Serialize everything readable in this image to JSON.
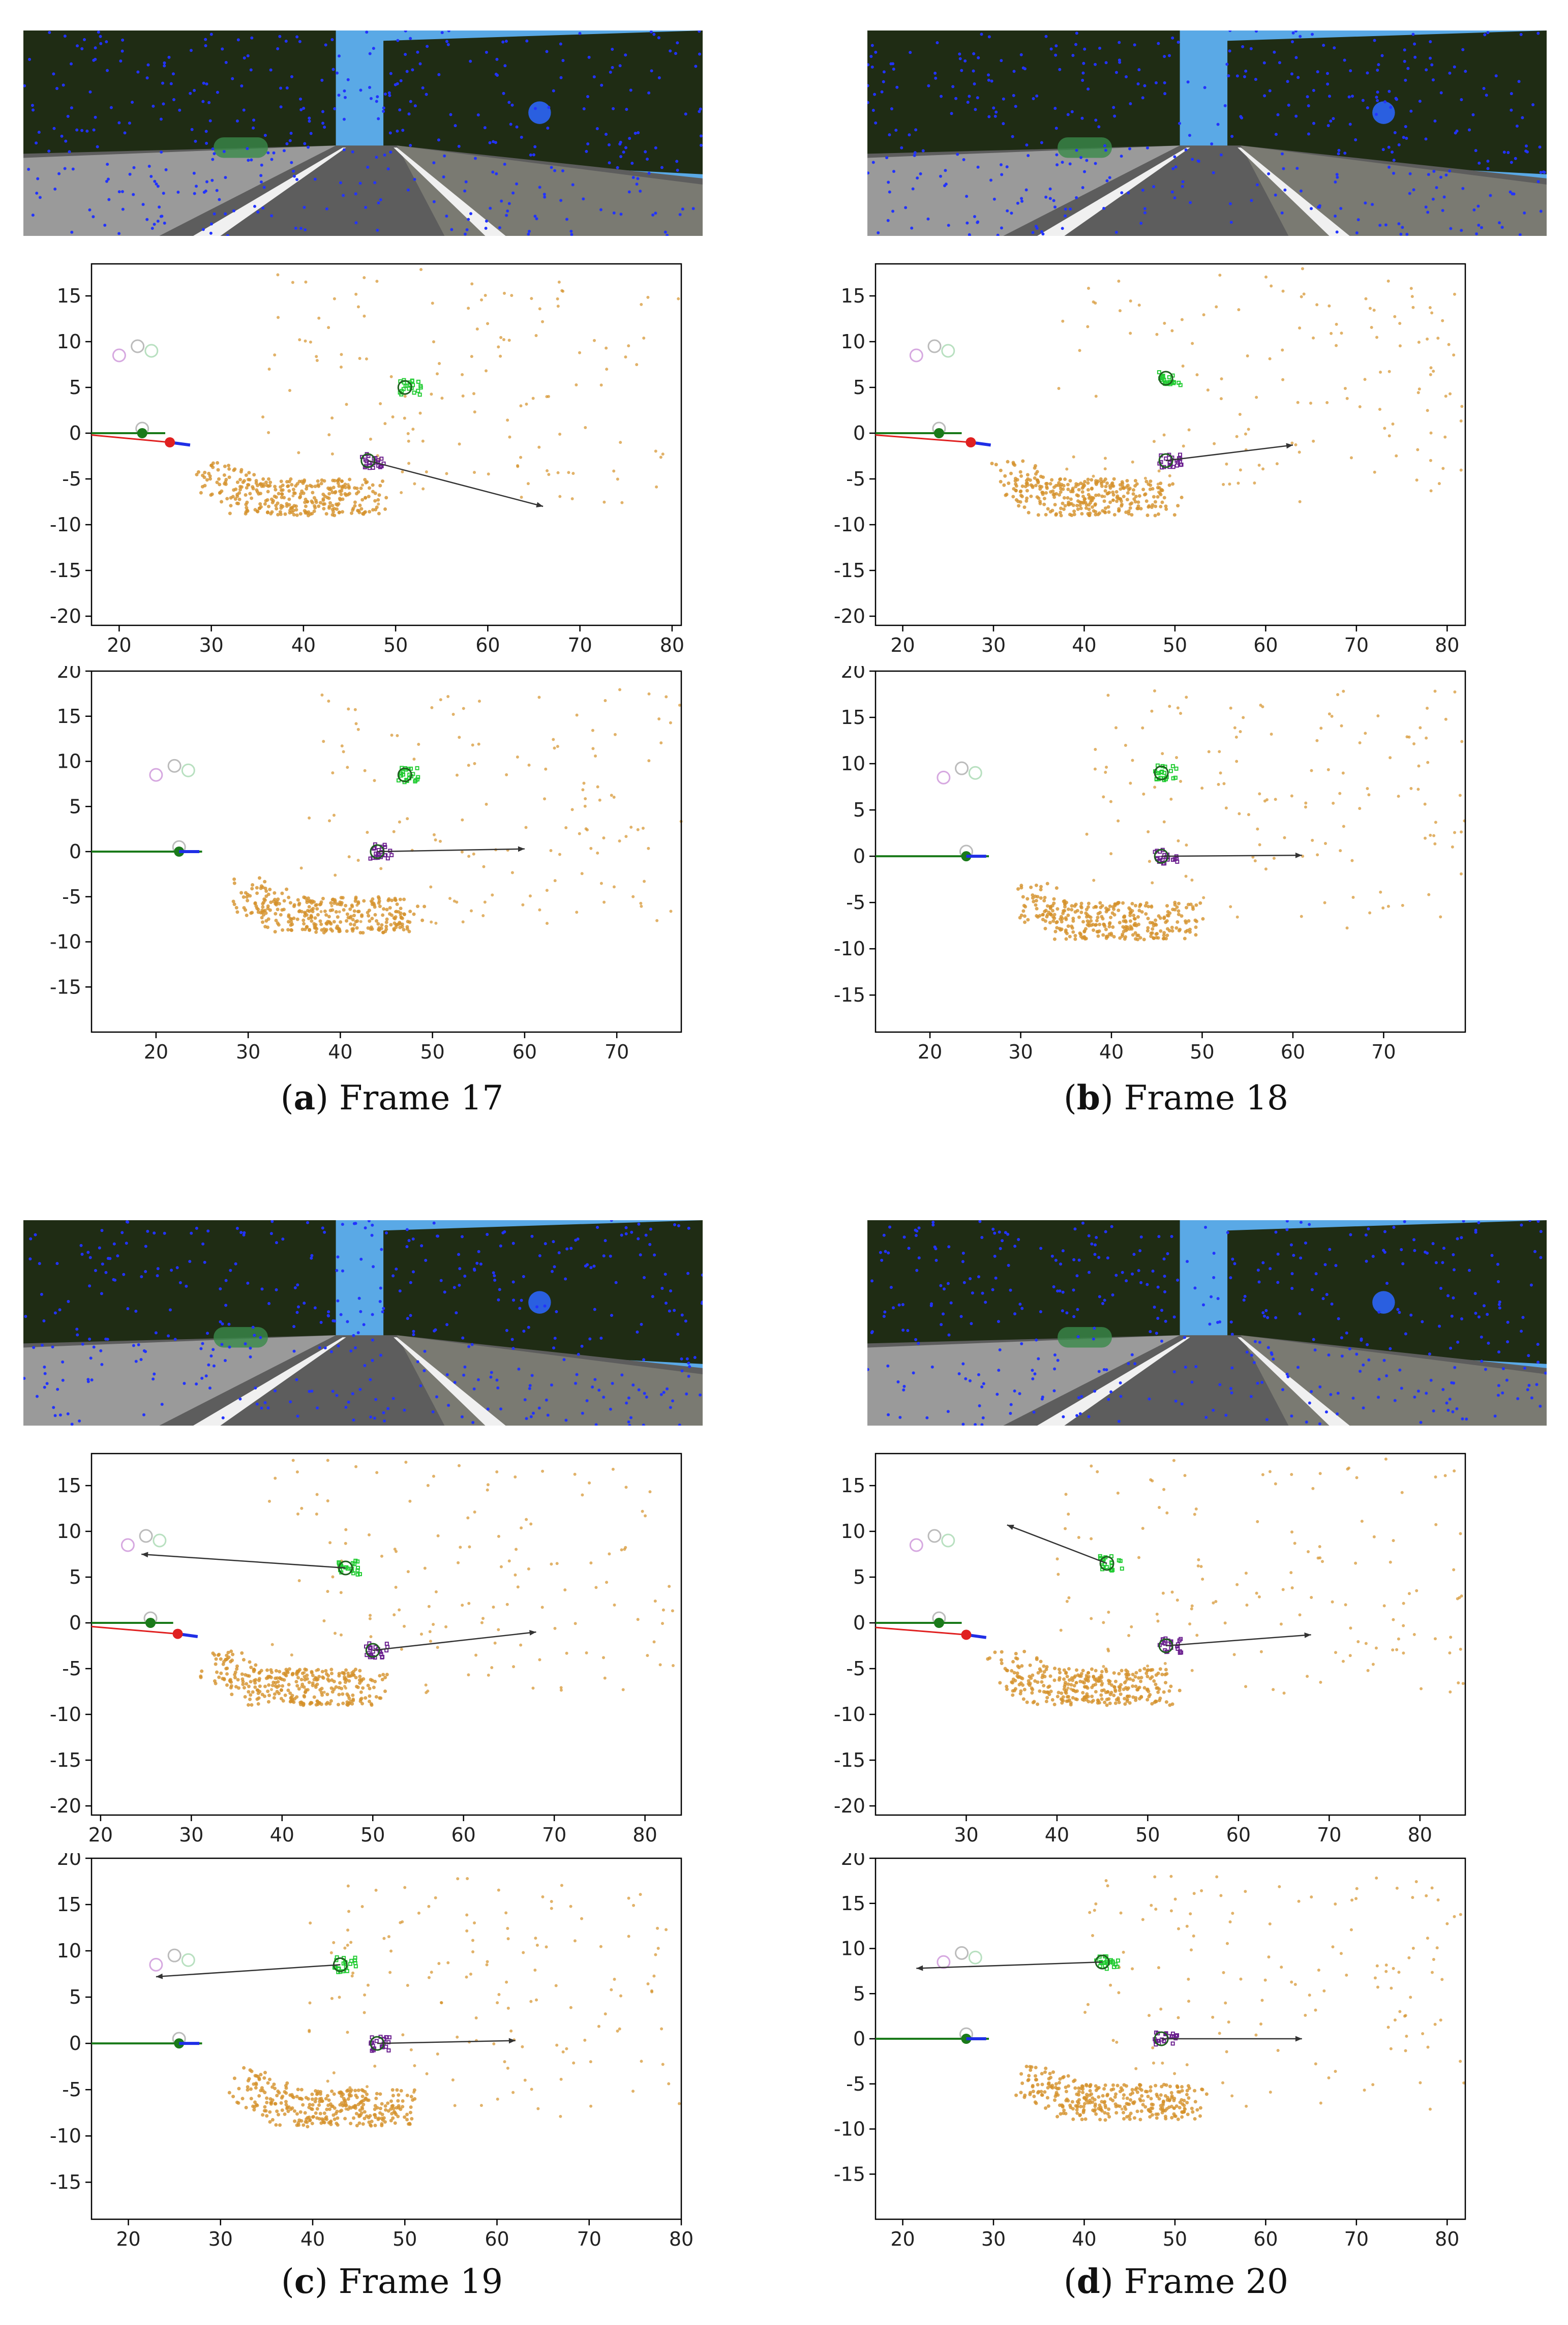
{
  "figure": {
    "panels": [
      {
        "letter": "a",
        "caption_text": "Frame 17",
        "plots": [
          {
            "xlim": [
              17,
              81
            ],
            "ylim": [
              -21,
              18.5
            ],
            "xticks": [
              20,
              30,
              40,
              50,
              60,
              70,
              80
            ],
            "yticks": [
              15,
              10,
              5,
              0,
              -5,
              -10,
              -15,
              -20
            ],
            "ego": {
              "x": 22.5,
              "y": 0
            },
            "predicted_ego": {
              "x": 25.5,
              "y": -1
            },
            "objects": [
              {
                "name": "car",
                "x": 51,
                "y": 5,
                "arrow_to": null
              },
              {
                "name": "pedestrian",
                "x": 47,
                "y": -3,
                "arrow_to": [
                  66,
                  -8
                ]
              }
            ]
          },
          {
            "xlim": [
              13,
              77
            ],
            "ylim": [
              -20,
              20
            ],
            "xticks": [
              20,
              30,
              40,
              50,
              60,
              70
            ],
            "yticks": [
              20,
              15,
              10,
              5,
              0,
              -5,
              -10,
              -15
            ],
            "ego": {
              "x": 22.5,
              "y": 0
            },
            "predicted_ego": null,
            "objects": [
              {
                "name": "car",
                "x": 47,
                "y": 8.5,
                "arrow_to": null
              },
              {
                "name": "pedestrian",
                "x": 44,
                "y": 0,
                "arrow_to": [
                  60,
                  0.3
                ]
              }
            ]
          }
        ]
      },
      {
        "letter": "b",
        "caption_text": "Frame 18",
        "plots": [
          {
            "xlim": [
              17,
              82
            ],
            "ylim": [
              -21,
              18.5
            ],
            "xticks": [
              20,
              30,
              40,
              50,
              60,
              70,
              80
            ],
            "yticks": [
              15,
              10,
              5,
              0,
              -5,
              -10,
              -15,
              -20
            ],
            "ego": {
              "x": 24,
              "y": 0
            },
            "predicted_ego": {
              "x": 27.5,
              "y": -1
            },
            "objects": [
              {
                "name": "car",
                "x": 49,
                "y": 6,
                "arrow_to": null
              },
              {
                "name": "pedestrian",
                "x": 49,
                "y": -3,
                "arrow_to": [
                  63,
                  -1.3
                ]
              }
            ]
          },
          {
            "xlim": [
              14,
              79
            ],
            "ylim": [
              -19,
              20
            ],
            "xticks": [
              20,
              30,
              40,
              50,
              60,
              70
            ],
            "yticks": [
              20,
              15,
              10,
              5,
              0,
              -5,
              -10,
              -15
            ],
            "ego": {
              "x": 24,
              "y": 0
            },
            "predicted_ego": null,
            "objects": [
              {
                "name": "car",
                "x": 45.5,
                "y": 9,
                "arrow_to": null
              },
              {
                "name": "pedestrian",
                "x": 45.5,
                "y": 0,
                "arrow_to": [
                  61,
                  0.1
                ]
              }
            ]
          }
        ]
      },
      {
        "letter": "c",
        "caption_text": "Frame 19",
        "plots": [
          {
            "xlim": [
              19,
              84
            ],
            "ylim": [
              -21,
              18.5
            ],
            "xticks": [
              20,
              30,
              40,
              50,
              60,
              70,
              80
            ],
            "yticks": [
              15,
              10,
              5,
              0,
              -5,
              -10,
              -15,
              -20
            ],
            "ego": {
              "x": 25.5,
              "y": 0
            },
            "predicted_ego": {
              "x": 28.5,
              "y": -1.2
            },
            "objects": [
              {
                "name": "car",
                "x": 47,
                "y": 6,
                "arrow_to": [
                  24.5,
                  7.5
                ]
              },
              {
                "name": "pedestrian",
                "x": 50,
                "y": -3,
                "arrow_to": [
                  68,
                  -1
                ]
              }
            ]
          },
          {
            "xlim": [
              16,
              80
            ],
            "ylim": [
              -19,
              20
            ],
            "xticks": [
              20,
              30,
              40,
              50,
              60,
              70,
              80
            ],
            "yticks": [
              20,
              15,
              10,
              5,
              0,
              -5,
              -10,
              -15
            ],
            "ego": {
              "x": 25.5,
              "y": 0
            },
            "predicted_ego": null,
            "objects": [
              {
                "name": "car",
                "x": 43,
                "y": 8.5,
                "arrow_to": [
                  23,
                  7.2
                ]
              },
              {
                "name": "pedestrian",
                "x": 47,
                "y": 0,
                "arrow_to": [
                  62,
                  0.3
                ]
              }
            ]
          }
        ]
      },
      {
        "letter": "d",
        "caption_text": "Frame 20",
        "plots": [
          {
            "xlim": [
              20,
              85
            ],
            "ylim": [
              -21,
              18.5
            ],
            "xticks": [
              30,
              40,
              50,
              60,
              70,
              80
            ],
            "yticks": [
              15,
              10,
              5,
              0,
              -5,
              -10,
              -15,
              -20
            ],
            "ego": {
              "x": 27,
              "y": 0
            },
            "predicted_ego": {
              "x": 30,
              "y": -1.3
            },
            "objects": [
              {
                "name": "car",
                "x": 45.5,
                "y": 6.5,
                "arrow_to": [
                  34.5,
                  10.7
                ]
              },
              {
                "name": "pedestrian",
                "x": 52,
                "y": -2.5,
                "arrow_to": [
                  68,
                  -1.3
                ]
              }
            ]
          },
          {
            "xlim": [
              17,
              82
            ],
            "ylim": [
              -20,
              20
            ],
            "xticks": [
              20,
              30,
              40,
              50,
              60,
              70,
              80
            ],
            "yticks": [
              20,
              15,
              10,
              5,
              0,
              -5,
              -10,
              -15
            ],
            "ego": {
              "x": 27,
              "y": 0
            },
            "predicted_ego": null,
            "objects": [
              {
                "name": "car",
                "x": 42,
                "y": 8.5,
                "arrow_to": [
                  21.5,
                  7.8
                ]
              },
              {
                "name": "pedestrian",
                "x": 48.5,
                "y": 0,
                "arrow_to": [
                  64,
                  0
                ]
              }
            ]
          }
        ]
      }
    ]
  },
  "colors": {
    "point_cloud": "#d4912a",
    "car": "#22cc33",
    "pedestrian": "#6b1f8f",
    "ego_path": "#1a7a1a",
    "ego_heading": "#1f2ee6",
    "predicted": "#e02020",
    "past": "#bbbbbb",
    "sky": "#5aa9e6",
    "foliage": "#1f2c14",
    "road": "#5d5d5d",
    "feature_points": "#2233ff"
  }
}
